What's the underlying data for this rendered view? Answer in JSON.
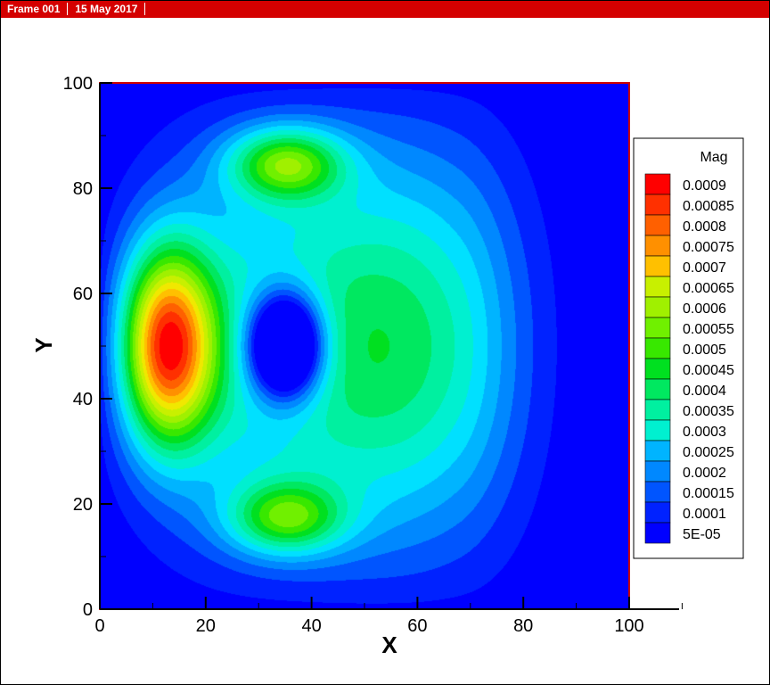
{
  "header": {
    "frame_label": "Frame 001",
    "date_label": "15 May 2017"
  },
  "colors": {
    "header_bg": "#d40000",
    "colormap": [
      "#0000ff",
      "#0022ff",
      "#0055ff",
      "#0088ff",
      "#00b4ff",
      "#00e0ff",
      "#00f0d0",
      "#00f0a0",
      "#00e860",
      "#00e020",
      "#38e800",
      "#70f000",
      "#a0f000",
      "#c8f000",
      "#f0e800",
      "#ffc000",
      "#ff9000",
      "#ff6000",
      "#ff3000",
      "#ff0000"
    ]
  },
  "chart_data": {
    "type": "heatmap",
    "title": "",
    "xlabel": "X",
    "ylabel": "Y",
    "xlim": [
      0,
      100
    ],
    "ylim": [
      0,
      100
    ],
    "x_ticks": [
      "0",
      "20",
      "40",
      "60",
      "80",
      "100"
    ],
    "y_ticks": [
      "0",
      "20",
      "40",
      "60",
      "80",
      "100"
    ],
    "legend": {
      "title": "Mag",
      "placement": "right",
      "levels": [
        "0.0009",
        "0.00085",
        "0.0008",
        "0.00075",
        "0.0007",
        "0.00065",
        "0.0006",
        "0.00055",
        "0.0005",
        "0.00045",
        "0.0004",
        "0.00035",
        "0.0003",
        "0.00025",
        "0.0002",
        "0.00015",
        "0.0001",
        "5E-05"
      ]
    },
    "field_features": [
      {
        "feature": "maximum",
        "x": 12,
        "y": 50,
        "value": 0.0009
      },
      {
        "feature": "local maximum",
        "x": 35,
        "y": 85,
        "value": 0.0007
      },
      {
        "feature": "local maximum",
        "x": 35,
        "y": 17,
        "value": 0.00065
      },
      {
        "feature": "minimum",
        "x": 35,
        "y": 50,
        "value": 5e-05
      }
    ]
  }
}
